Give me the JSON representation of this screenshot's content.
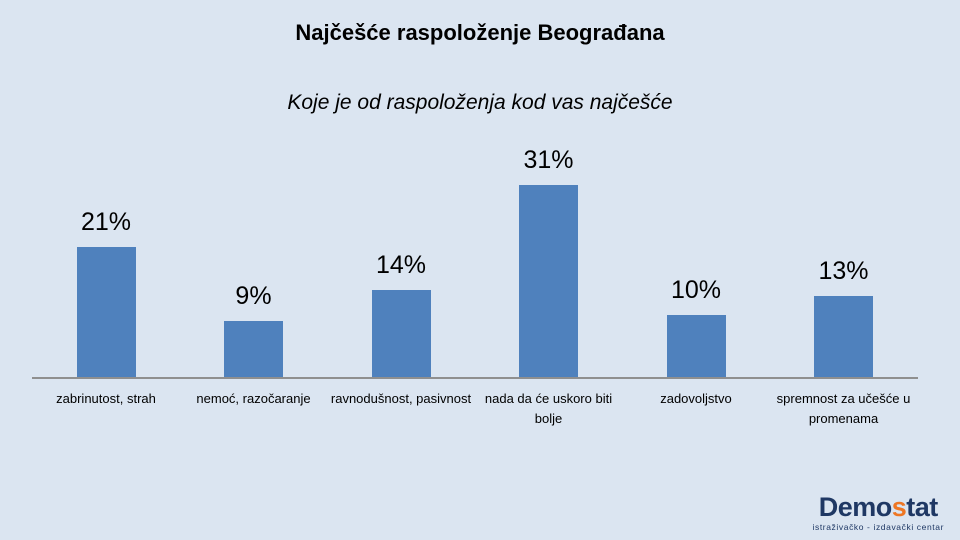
{
  "chart_data": {
    "type": "bar",
    "title": "Najčešće raspoloženje Beograđana",
    "subtitle": "Koje je od raspoloženja kod vas najčešće",
    "categories": [
      "zabrinutost, strah",
      "nemoć, razočaranje",
      "ravnodušnost, pasivnost",
      "nada da će uskoro biti bolje",
      "zadovoljstvo",
      "spremnost za učešće u promenama"
    ],
    "values": [
      21,
      9,
      14,
      31,
      10,
      13
    ],
    "value_labels": [
      "21%",
      "9%",
      "14%",
      "31%",
      "10%",
      "13%"
    ],
    "unit": "percent",
    "ylim": [
      0,
      35
    ],
    "grid": false,
    "legend": "none",
    "bar_color": "#4f81bd",
    "background_color": "#dbe5f1",
    "axis_line_color": "#8f8f8f"
  },
  "logo": {
    "prefix": "Demo",
    "accent": "s",
    "suffix": "tat",
    "subtext": "istraživačko - izdavački centar",
    "navy_color": "#1f3864",
    "accent_color": "#ee7623"
  }
}
